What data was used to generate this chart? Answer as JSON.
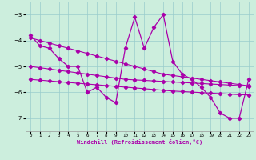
{
  "xlabel": "Windchill (Refroidissement éolien,°C)",
  "background_color": "#cceedd",
  "line_color": "#aa00aa",
  "grid_color": "#99cccc",
  "x": [
    0,
    1,
    2,
    3,
    4,
    5,
    6,
    7,
    8,
    9,
    10,
    11,
    12,
    13,
    14,
    15,
    16,
    17,
    18,
    19,
    20,
    21,
    22,
    23
  ],
  "curve_main": [
    -3.8,
    -4.2,
    -4.3,
    -4.7,
    -5.0,
    -5.0,
    -6.0,
    -5.8,
    -6.2,
    -6.4,
    -4.3,
    -3.1,
    -4.3,
    -3.5,
    -3.0,
    -4.8,
    -5.3,
    -5.5,
    -5.8,
    -6.2,
    -6.8,
    -7.0,
    -7.0,
    -5.5
  ],
  "curve_top": [
    -3.9,
    -4.0,
    -4.1,
    -4.2,
    -4.3,
    -4.4,
    -4.5,
    -4.6,
    -4.7,
    -4.8,
    -4.9,
    -5.0,
    -5.1,
    -5.2,
    -5.3,
    -5.35,
    -5.4,
    -5.45,
    -5.5,
    -5.55,
    -5.6,
    -5.65,
    -5.7,
    -5.75
  ],
  "curve_mid": [
    -5.0,
    -5.05,
    -5.1,
    -5.15,
    -5.2,
    -5.25,
    -5.3,
    -5.35,
    -5.4,
    -5.45,
    -5.5,
    -5.52,
    -5.54,
    -5.56,
    -5.58,
    -5.6,
    -5.62,
    -5.64,
    -5.66,
    -5.68,
    -5.7,
    -5.72,
    -5.74,
    -5.76
  ],
  "curve_bot": [
    -5.5,
    -5.53,
    -5.56,
    -5.59,
    -5.62,
    -5.65,
    -5.68,
    -5.71,
    -5.74,
    -5.77,
    -5.8,
    -5.83,
    -5.86,
    -5.89,
    -5.92,
    -5.95,
    -5.97,
    -5.99,
    -6.01,
    -6.03,
    -6.05,
    -6.07,
    -6.09,
    -6.1
  ],
  "ylim": [
    -7.5,
    -2.5
  ],
  "xlim": [
    -0.5,
    23.5
  ],
  "yticks": [
    -7,
    -6,
    -5,
    -4,
    -3
  ],
  "xticks": [
    0,
    1,
    2,
    3,
    4,
    5,
    6,
    7,
    8,
    9,
    10,
    11,
    12,
    13,
    14,
    15,
    16,
    17,
    18,
    19,
    20,
    21,
    22,
    23
  ]
}
